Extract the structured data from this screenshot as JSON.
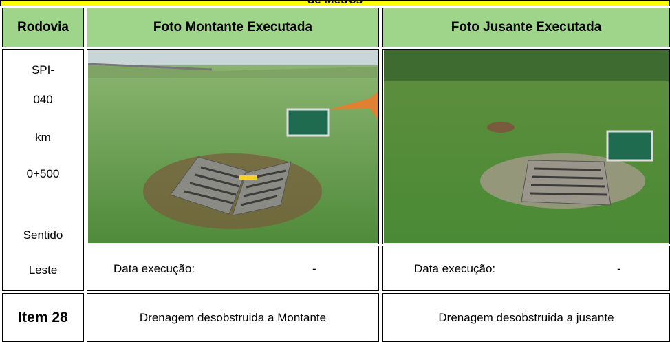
{
  "banner": {
    "title": "de Metros"
  },
  "table": {
    "headers": [
      "Rodovia",
      "Foto Montante Executada",
      "Foto Jusante Executada"
    ],
    "location": [
      "SPI-",
      "040",
      "km",
      "0+500",
      "Sentido",
      "Leste"
    ],
    "montante": {
      "date_label": "Data execução:",
      "date_value": "-"
    },
    "jusante": {
      "date_label": "Data execução:",
      "date_value": "-"
    },
    "item": "Item 28",
    "descriptions": [
      "Drenagem desobstruida a Montante",
      "Drenagem desobstruida a jusante"
    ]
  }
}
